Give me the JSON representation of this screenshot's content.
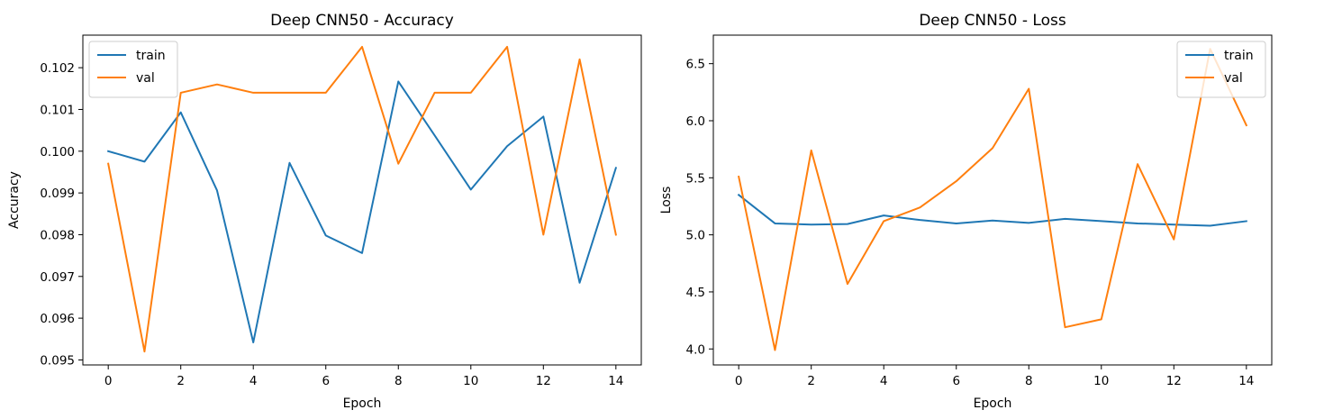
{
  "colors": {
    "train": "#1f77b4",
    "val": "#ff7f0e"
  },
  "chart_data": [
    {
      "type": "line",
      "title": "Deep CNN50 - Accuracy",
      "xlabel": "Epoch",
      "ylabel": "Accuracy",
      "xlim": [
        -0.7,
        14.7
      ],
      "ylim": [
        0.09488,
        0.10278
      ],
      "xticks": [
        0,
        2,
        4,
        6,
        8,
        10,
        12,
        14
      ],
      "yticks": [
        0.095,
        0.096,
        0.097,
        0.098,
        0.099,
        0.1,
        0.101,
        0.102
      ],
      "ytick_labels": [
        "0.095",
        "0.096",
        "0.097",
        "0.098",
        "0.099",
        "0.100",
        "0.101",
        "0.102"
      ],
      "legend_position": "upper left",
      "x": [
        0,
        1,
        2,
        3,
        4,
        5,
        6,
        7,
        8,
        9,
        10,
        11,
        12,
        13,
        14
      ],
      "series": [
        {
          "name": "train",
          "color_key": "train",
          "values": [
            0.1,
            0.09975,
            0.10093,
            0.09906,
            0.09542,
            0.09972,
            0.09798,
            0.09756,
            0.10167,
            0.10038,
            0.09908,
            0.10012,
            0.10083,
            0.09685,
            0.0996
          ]
        },
        {
          "name": "val",
          "color_key": "val",
          "values": [
            0.0997,
            0.0952,
            0.1014,
            0.1016,
            0.1014,
            0.1014,
            0.1014,
            0.1025,
            0.0997,
            0.1014,
            0.1014,
            0.1025,
            0.098,
            0.1022,
            0.098
          ]
        }
      ]
    },
    {
      "type": "line",
      "title": "Deep CNN50 - Loss",
      "xlabel": "Epoch",
      "ylabel": "Loss",
      "xlim": [
        -0.7,
        14.7
      ],
      "ylim": [
        3.86,
        6.75
      ],
      "xticks": [
        0,
        2,
        4,
        6,
        8,
        10,
        12,
        14
      ],
      "yticks": [
        4.0,
        4.5,
        5.0,
        5.5,
        6.0,
        6.5
      ],
      "ytick_labels": [
        "4.0",
        "4.5",
        "5.0",
        "5.5",
        "6.0",
        "6.5"
      ],
      "legend_position": "upper right",
      "x": [
        0,
        1,
        2,
        3,
        4,
        5,
        6,
        7,
        8,
        9,
        10,
        11,
        12,
        13,
        14
      ],
      "series": [
        {
          "name": "train",
          "color_key": "train",
          "values": [
            5.35,
            5.1,
            5.09,
            5.095,
            5.17,
            5.13,
            5.1,
            5.125,
            5.105,
            5.14,
            5.12,
            5.1,
            5.09,
            5.08,
            5.12
          ]
        },
        {
          "name": "val",
          "color_key": "val",
          "values": [
            5.51,
            3.99,
            5.74,
            4.57,
            5.12,
            5.24,
            5.47,
            5.76,
            6.28,
            4.19,
            4.26,
            5.62,
            4.96,
            6.63,
            5.96
          ]
        }
      ]
    }
  ]
}
